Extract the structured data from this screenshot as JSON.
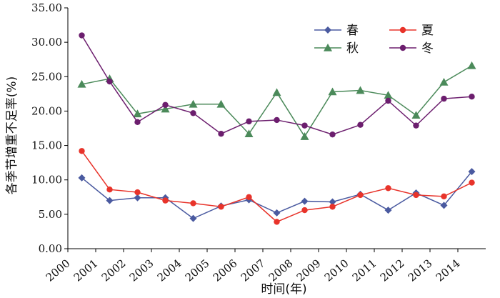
{
  "chart_data": {
    "type": "line",
    "xlabel": "时间(年)",
    "ylabel": "各季节增重不足率(%)",
    "ylim": [
      0,
      35
    ],
    "yticks": [
      "0.00",
      "5.00",
      "10.00",
      "15.00",
      "20.00",
      "25.00",
      "30.00",
      "35.00"
    ],
    "categories": [
      "2000",
      "2001",
      "2002",
      "2003",
      "2004",
      "2005",
      "2006",
      "2007",
      "2008",
      "2009",
      "2010",
      "2011",
      "2012",
      "2013",
      "2014"
    ],
    "x": [
      2000.5,
      2001.5,
      2002.5,
      2003.5,
      2004.5,
      2005.5,
      2006.5,
      2007.5,
      2008.5,
      2009.5,
      2010.5,
      2011.5,
      2012.5,
      2013.5,
      2014.5
    ],
    "grid": false,
    "legend_position": "top-right",
    "series": [
      {
        "name": "春",
        "color": "#4a5aa0",
        "marker": "diamond",
        "values": [
          10.3,
          7.0,
          7.4,
          7.4,
          4.4,
          6.2,
          7.1,
          5.2,
          6.9,
          6.8,
          7.9,
          5.6,
          8.1,
          6.3,
          11.2
        ]
      },
      {
        "name": "夏",
        "color": "#e8332a",
        "marker": "circle",
        "values": [
          14.2,
          8.6,
          8.2,
          7.0,
          6.6,
          6.1,
          7.5,
          3.9,
          5.6,
          6.1,
          7.8,
          8.8,
          7.8,
          7.6,
          9.6
        ]
      },
      {
        "name": "秋",
        "color": "#4b8a5a",
        "marker": "triangle",
        "values": [
          23.9,
          24.7,
          19.6,
          20.3,
          21.0,
          21.0,
          16.7,
          22.7,
          16.3,
          22.8,
          23.0,
          22.3,
          19.4,
          24.2,
          26.6
        ]
      },
      {
        "name": "冬",
        "color": "#6c1e6e",
        "marker": "circle",
        "values": [
          31.0,
          24.3,
          18.4,
          20.9,
          19.7,
          16.7,
          18.5,
          18.7,
          17.9,
          16.6,
          18.0,
          21.5,
          17.9,
          21.8,
          22.1
        ]
      }
    ]
  }
}
